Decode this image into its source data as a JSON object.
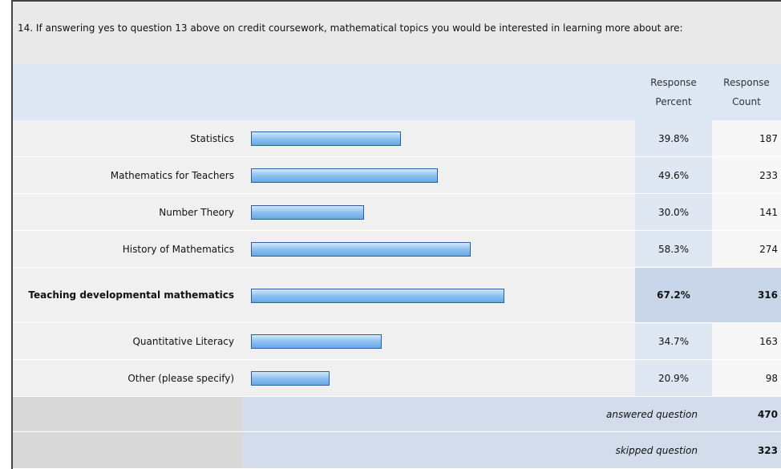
{
  "chart_data": {
    "type": "bar",
    "orientation": "horizontal",
    "title": "14. If answering yes to question 13 above on credit coursework, mathematical topics you would be interested in learning more about are:",
    "column_headers": [
      "Response Percent",
      "Response Count"
    ],
    "categories": [
      "Statistics",
      "Mathematics for Teachers",
      "Number Theory",
      "History of Mathematics",
      "Teaching developmental mathematics",
      "Quantitative Literacy",
      "Other (please specify)"
    ],
    "values": [
      39.8,
      49.6,
      30.0,
      58.3,
      67.2,
      34.7,
      20.9
    ],
    "value_labels": [
      "39.8%",
      "49.6%",
      "30.0%",
      "58.3%",
      "67.2%",
      "34.7%",
      "20.9%"
    ],
    "counts": [
      187,
      233,
      141,
      274,
      316,
      163,
      98
    ],
    "color": "#8cc1f0",
    "highlight": 4,
    "summary": [
      {
        "label": "answered question",
        "count": 470
      },
      {
        "label": "skipped question",
        "count": 323
      }
    ]
  }
}
